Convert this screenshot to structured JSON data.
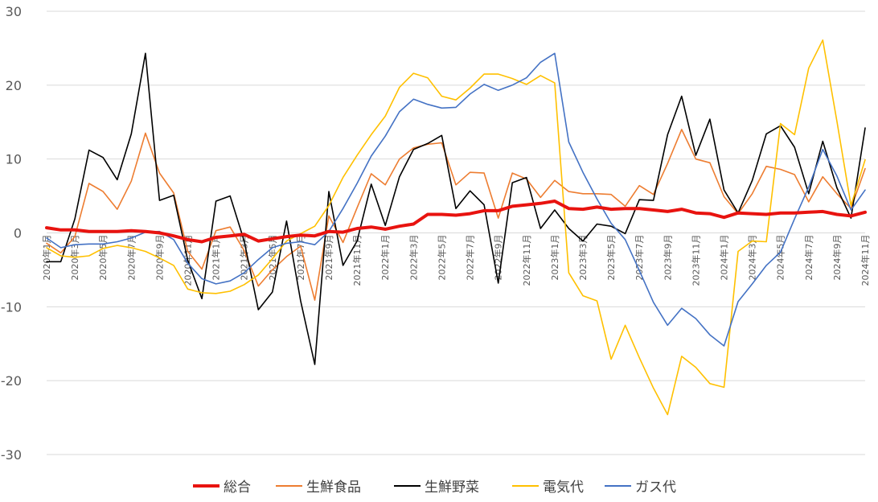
{
  "chart_data": {
    "type": "line",
    "title": "",
    "xlabel": "",
    "ylabel": "",
    "ylim": [
      -30,
      30
    ],
    "ytick_step": 10,
    "grid": "horizontal",
    "legend_position": "bottom",
    "x": [
      "2020年1月",
      "2020年2月",
      "2020年3月",
      "2020年4月",
      "2020年5月",
      "2020年6月",
      "2020年7月",
      "2020年8月",
      "2020年9月",
      "2020年10月",
      "2020年11月",
      "2020年12月",
      "2021年1月",
      "2021年2月",
      "2021年3月",
      "2021年4月",
      "2021年5月",
      "2021年6月",
      "2021年7月",
      "2021年8月",
      "2021年9月",
      "2021年10月",
      "2021年11月",
      "2021年12月",
      "2022年1月",
      "2022年2月",
      "2022年3月",
      "2022年4月",
      "2022年5月",
      "2022年6月",
      "2022年7月",
      "2022年8月",
      "2022年9月",
      "2022年10月",
      "2022年11月",
      "2022年12月",
      "2023年1月",
      "2023年2月",
      "2023年3月",
      "2023年4月",
      "2023年5月",
      "2023年6月",
      "2023年7月",
      "2023年8月",
      "2023年9月",
      "2023年10月",
      "2023年11月",
      "2023年12月",
      "2024年1月",
      "2024年2月",
      "2024年3月",
      "2024年4月",
      "2024年5月",
      "2024年6月",
      "2024年7月",
      "2024年8月",
      "2024年9月",
      "2024年10月",
      "2024年11月"
    ],
    "xtick_labels": [
      "2020年1月",
      "2020年3月",
      "2020年5月",
      "2020年7月",
      "2020年9月",
      "2020年11月",
      "2021年1月",
      "2021年3月",
      "2021年5月",
      "2021年7月",
      "2021年9月",
      "2021年11月",
      "2022年1月",
      "2022年3月",
      "2022年5月",
      "2022年7月",
      "2022年9月",
      "2022年11月",
      "2023年1月",
      "2023年3月",
      "2023年5月",
      "2023年7月",
      "2023年9月",
      "2023年11月",
      "2024年1月",
      "2024年3月",
      "2024年5月",
      "2024年7月",
      "2024年9月",
      "2024年11月"
    ],
    "series": [
      {
        "name": "総合",
        "color": "#e8130f",
        "width": 4,
        "values": [
          0.7,
          0.4,
          0.4,
          0.2,
          0.2,
          0.2,
          0.3,
          0.2,
          0.0,
          -0.4,
          -0.9,
          -1.2,
          -0.6,
          -0.4,
          -0.2,
          -1.1,
          -0.8,
          -0.5,
          -0.3,
          -0.4,
          0.2,
          0.1,
          0.6,
          0.8,
          0.5,
          0.9,
          1.2,
          2.5,
          2.5,
          2.4,
          2.6,
          3.0,
          3.0,
          3.6,
          3.8,
          4.0,
          4.3,
          3.3,
          3.2,
          3.5,
          3.2,
          3.3,
          3.3,
          3.1,
          2.9,
          3.2,
          2.7,
          2.6,
          2.1,
          2.7,
          2.6,
          2.5,
          2.7,
          2.7,
          2.8,
          2.9,
          2.5,
          2.3,
          2.8
        ]
      },
      {
        "name": "生鮮食品",
        "color": "#ed7d31",
        "width": 1.6,
        "values": [
          -1.4,
          -2.7,
          -0.5,
          6.7,
          5.6,
          3.2,
          7.0,
          13.5,
          8.1,
          5.4,
          -2.5,
          -4.9,
          0.3,
          0.8,
          -2.4,
          -7.2,
          -5.0,
          -3.2,
          -1.8,
          -9.1,
          2.3,
          -1.3,
          3.4,
          8.0,
          6.5,
          10.0,
          11.5,
          12.0,
          12.2,
          6.5,
          8.2,
          8.1,
          2.0,
          8.1,
          7.3,
          4.8,
          7.1,
          5.6,
          5.3,
          5.3,
          5.2,
          3.6,
          6.4,
          5.2,
          9.4,
          14.0,
          10.0,
          9.5,
          4.9,
          2.6,
          5.3,
          9.0,
          8.6,
          7.9,
          4.2,
          7.6,
          5.3,
          3.3,
          8.7
        ]
      },
      {
        "name": "生鮮野菜",
        "color": "#000000",
        "width": 1.6,
        "values": [
          -3.9,
          -3.9,
          1.9,
          11.2,
          10.2,
          7.2,
          13.4,
          24.3,
          4.4,
          5.1,
          -3.7,
          -8.9,
          4.3,
          5.0,
          -1.1,
          -10.4,
          -8.0,
          1.6,
          -9.2,
          -17.8,
          5.6,
          -4.4,
          -1.1,
          6.6,
          1.0,
          7.6,
          11.3,
          12.1,
          13.2,
          3.3,
          5.7,
          3.8,
          -6.8,
          6.8,
          7.5,
          0.6,
          3.1,
          0.6,
          -1.1,
          1.2,
          0.9,
          -0.1,
          4.5,
          4.4,
          13.3,
          18.5,
          10.5,
          15.4,
          5.8,
          2.7,
          7.1,
          13.4,
          14.5,
          11.6,
          5.3,
          12.4,
          6.1,
          2.0,
          14.2
        ]
      },
      {
        "name": "電気代",
        "color": "#ffc000",
        "width": 1.6,
        "values": [
          -2.0,
          -3.1,
          -3.3,
          -3.1,
          -2.1,
          -1.7,
          -2.0,
          -2.5,
          -3.4,
          -4.4,
          -7.6,
          -8.1,
          -8.2,
          -7.9,
          -7.0,
          -5.7,
          -3.5,
          -1.1,
          -0.1,
          0.9,
          3.7,
          7.5,
          10.5,
          13.3,
          15.8,
          19.7,
          21.6,
          21.0,
          18.5,
          18.0,
          19.6,
          21.5,
          21.5,
          20.9,
          20.1,
          21.3,
          20.3,
          -5.4,
          -8.5,
          -9.2,
          -17.1,
          -12.5,
          -16.9,
          -21.0,
          -24.6,
          -16.7,
          -18.2,
          -20.4,
          -20.9,
          -2.5,
          -1.1,
          -1.2,
          14.8,
          13.3,
          22.3,
          26.1,
          15.1,
          3.7,
          9.9
        ]
      },
      {
        "name": "ガス代",
        "color": "#4472c4",
        "width": 1.6,
        "values": [
          -0.7,
          -2.0,
          -1.6,
          -1.5,
          -1.5,
          -1.2,
          -0.7,
          0.1,
          0.2,
          -0.9,
          -4.1,
          -6.2,
          -6.9,
          -6.5,
          -5.4,
          -3.6,
          -2.0,
          -1.4,
          -1.2,
          -1.6,
          0.2,
          3.3,
          6.7,
          10.4,
          13.1,
          16.4,
          18.1,
          17.4,
          16.9,
          17.0,
          18.8,
          20.1,
          19.3,
          20.0,
          21.0,
          23.1,
          24.3,
          12.3,
          8.2,
          4.6,
          1.3,
          -0.9,
          -5.1,
          -9.4,
          -12.5,
          -10.2,
          -11.6,
          -13.8,
          -15.3,
          -9.3,
          -6.9,
          -4.4,
          -2.6,
          1.9,
          6.2,
          11.3,
          7.7,
          3.1,
          5.8
        ]
      }
    ]
  }
}
